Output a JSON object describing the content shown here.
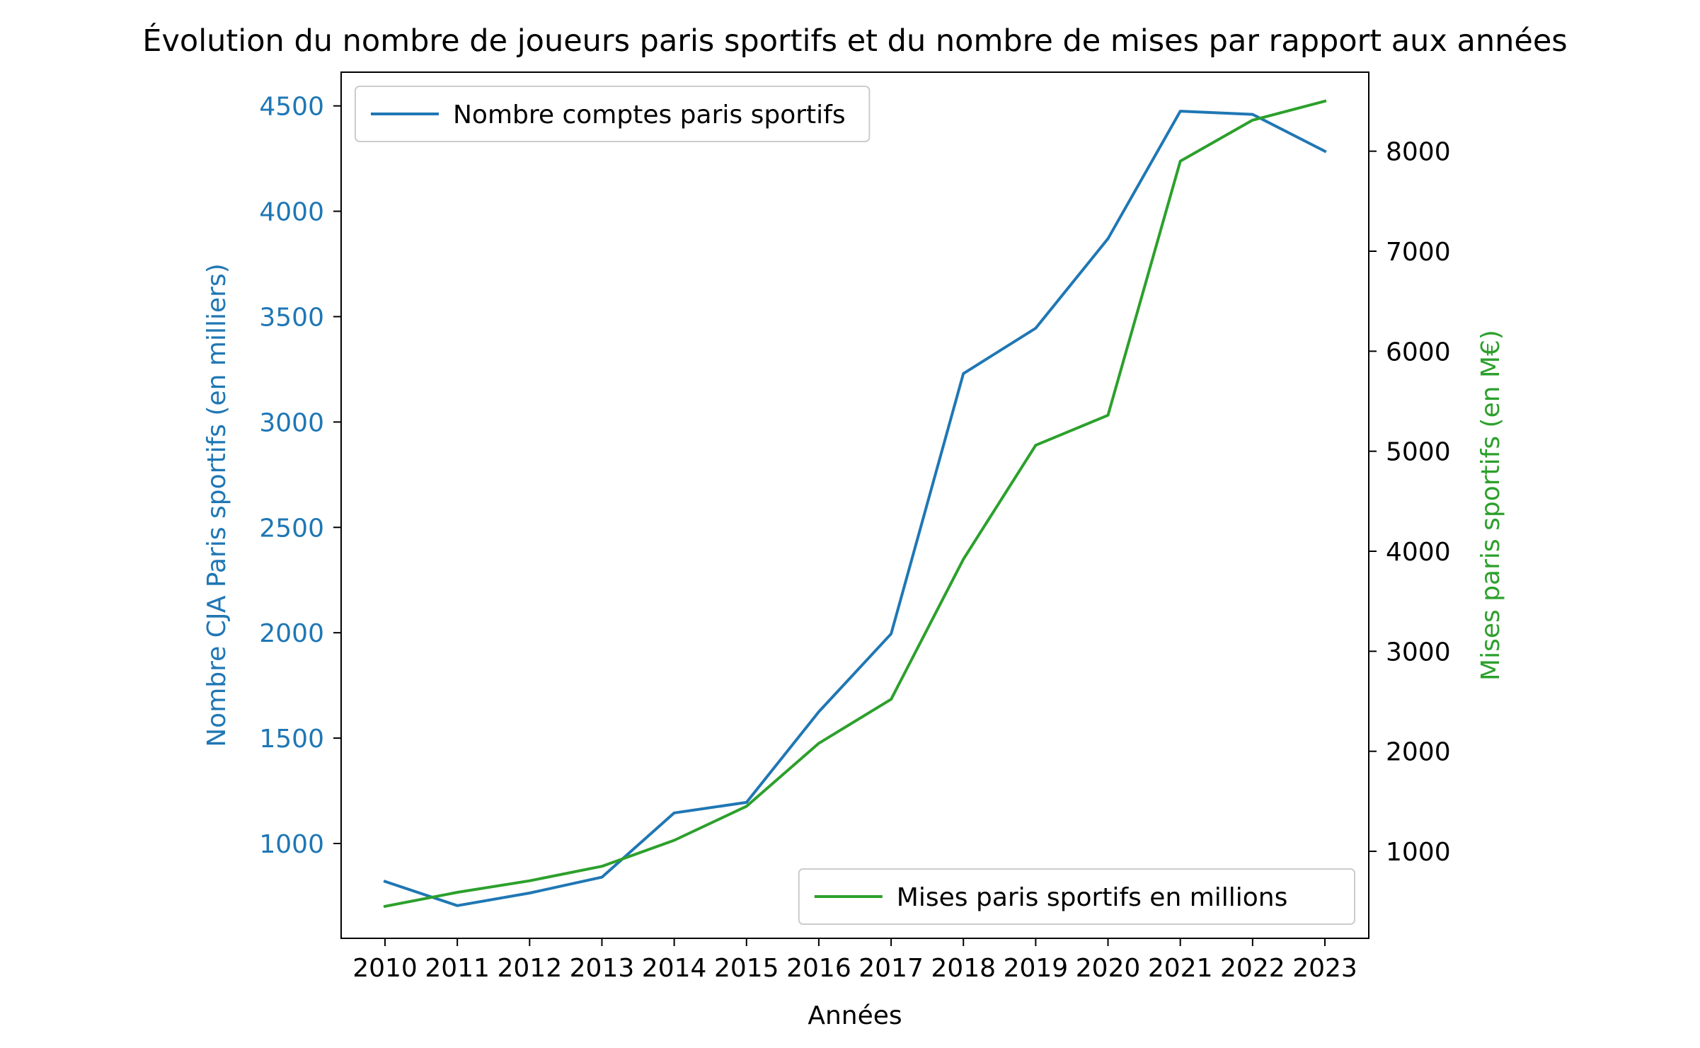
{
  "chart_data": {
    "type": "line",
    "title": "Évolution du nombre de joueurs paris sportifs et du nombre de mises par rapport aux années",
    "xlabel": "Années",
    "x": [
      "2010",
      "2011",
      "2012",
      "2013",
      "2014",
      "2015",
      "2016",
      "2017",
      "2018",
      "2019",
      "2020",
      "2021",
      "2022",
      "2023"
    ],
    "left_axis": {
      "label": "Nombre CJA Paris sportifs (en milliers)",
      "color": "#1f77b4",
      "ylim": [
        550,
        4660
      ],
      "ticks": [
        1000,
        1500,
        2000,
        2500,
        3000,
        3500,
        4000,
        4500
      ]
    },
    "right_axis": {
      "label": "Mises paris sportifs (en M€)",
      "color": "#2ca02c",
      "ylim": [
        130,
        8790
      ],
      "ticks": [
        1000,
        2000,
        3000,
        4000,
        5000,
        6000,
        7000,
        8000
      ]
    },
    "series": [
      {
        "name": "Nombre comptes paris sportifs",
        "axis": "left",
        "color": "#1f77b4",
        "values": [
          820,
          705,
          765,
          840,
          1145,
          1195,
          1625,
          1995,
          3230,
          3445,
          3870,
          4475,
          4460,
          4285
        ]
      },
      {
        "name": "Mises paris sportifs en millions",
        "axis": "right",
        "color": "#2ca02c",
        "values": [
          450,
          590,
          705,
          850,
          1110,
          1450,
          2080,
          2520,
          3920,
          5060,
          5360,
          7900,
          8310,
          8500
        ]
      }
    ],
    "legends": [
      {
        "series": 0,
        "placement": "upper left"
      },
      {
        "series": 1,
        "placement": "lower right"
      }
    ],
    "grid": false
  }
}
